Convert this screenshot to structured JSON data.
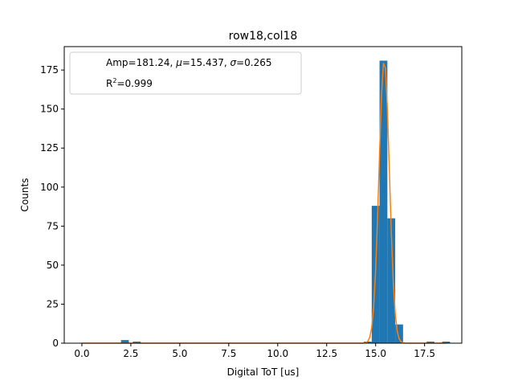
{
  "chart_data": {
    "type": "bar",
    "title": "row18,col18",
    "xlabel": "Digital ToT [us]",
    "ylabel": "Counts",
    "xlim": [
      -0.9,
      19.4
    ],
    "ylim": [
      0,
      190
    ],
    "grid": false,
    "legend_position": "top-left",
    "x_ticks": [
      0.0,
      2.5,
      5.0,
      7.5,
      10.0,
      12.5,
      15.0,
      17.5
    ],
    "x_tick_labels": [
      "0.0",
      "2.5",
      "5.0",
      "7.5",
      "10.0",
      "12.5",
      "15.0",
      "17.5"
    ],
    "y_ticks": [
      0,
      25,
      50,
      75,
      100,
      125,
      150,
      175
    ],
    "y_tick_labels": [
      "0",
      "25",
      "50",
      "75",
      "100",
      "125",
      "150",
      "175"
    ],
    "bin_width": 0.4,
    "histogram": {
      "bins": [
        {
          "x": 2.2,
          "value": 2
        },
        {
          "x": 2.8,
          "value": 1
        },
        {
          "x": 14.6,
          "value": 1
        },
        {
          "x": 15.0,
          "value": 88
        },
        {
          "x": 15.4,
          "value": 181
        },
        {
          "x": 15.8,
          "value": 80
        },
        {
          "x": 16.2,
          "value": 12
        },
        {
          "x": 17.8,
          "value": 1
        },
        {
          "x": 18.6,
          "value": 1
        }
      ],
      "color": "#1f77b4"
    },
    "fit": {
      "amp": 181.24,
      "mu": 15.437,
      "sigma": 0.265,
      "x_range": [
        0,
        18.6
      ],
      "color": "#ff7f0e"
    },
    "legend": {
      "line1_prefix": "Amp=181.24, ",
      "mu_symbol": "μ",
      "mu_value": "=15.437, ",
      "sigma_symbol": "σ",
      "sigma_value": "=0.265",
      "r2_base": "R",
      "r2_exp": "2",
      "r2_value": "=0.999"
    }
  }
}
